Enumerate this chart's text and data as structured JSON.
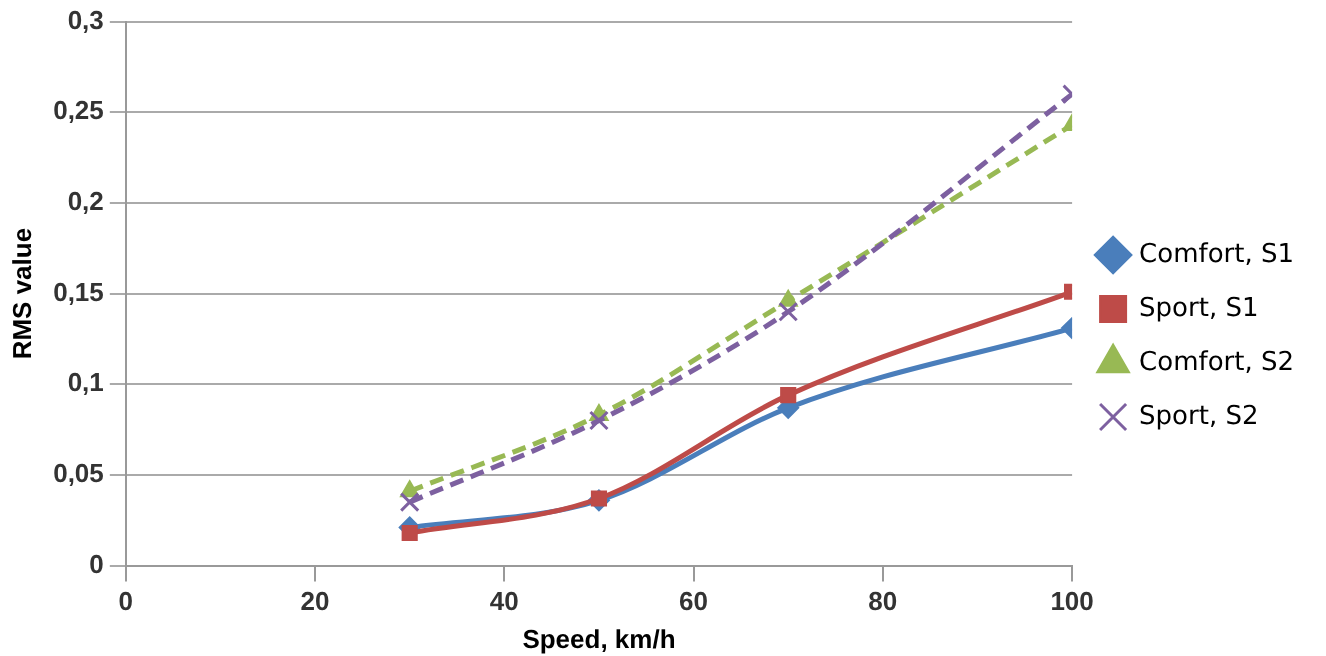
{
  "chart_data": {
    "type": "line",
    "xlabel": "Speed, km/h",
    "ylabel": "RMS value",
    "x": [
      30,
      50,
      70,
      100
    ],
    "series": [
      {
        "name": "Comfort, S1",
        "color": "#4a7ebb",
        "values": [
          0.021,
          0.036,
          0.087,
          0.131
        ],
        "marker": "diamond",
        "line_style": "solid"
      },
      {
        "name": "Sport, S1",
        "color": "#be4b48",
        "values": [
          0.018,
          0.037,
          0.094,
          0.151
        ],
        "marker": "square",
        "line_style": "solid"
      },
      {
        "name": "Comfort, S2",
        "color": "#98b954",
        "values": [
          0.041,
          0.083,
          0.146,
          0.243
        ],
        "marker": "triangle",
        "line_style": "dashed"
      },
      {
        "name": "Sport, S2",
        "color": "#7d60a0",
        "values": [
          0.035,
          0.08,
          0.14,
          0.26
        ],
        "marker": "cross",
        "line_style": "dashed"
      }
    ],
    "xlim": [
      0,
      100
    ],
    "xticks": [
      0,
      20,
      40,
      60,
      80,
      100
    ],
    "ylim": [
      0,
      0.3
    ],
    "yticks": [
      0,
      {
        "value": 0.05,
        "label": "0,05"
      },
      {
        "value": 0.1,
        "label": "0,1"
      },
      {
        "value": 0.15,
        "label": "0,15"
      },
      {
        "value": 0.2,
        "label": "0,2"
      },
      {
        "value": 0.25,
        "label": "0,25"
      },
      {
        "value": 0.3,
        "label": "0,3"
      }
    ],
    "grid": "y",
    "legend": "right"
  }
}
